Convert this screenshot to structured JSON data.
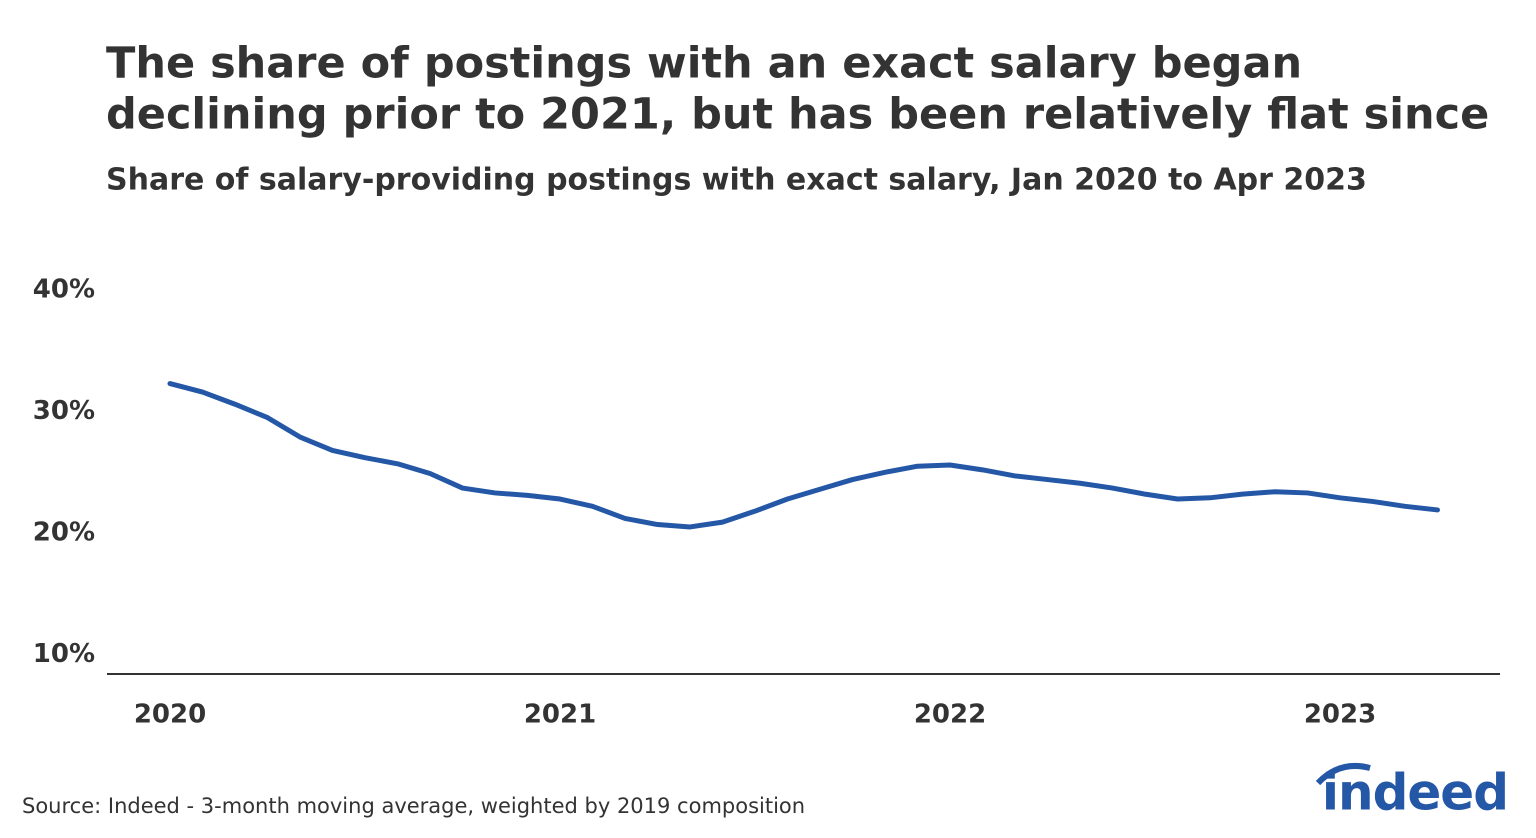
{
  "chart_data": {
    "type": "line",
    "title": "The share of postings with an exact salary began declining prior to 2021, but has been relatively flat since",
    "subtitle": "Share of salary-providing postings with exact salary, Jan 2020 to Apr 2023",
    "source": "Source: Indeed - 3-month moving average, weighted by 2019 composition",
    "logo": "indeed",
    "categories": [
      "2020",
      null,
      null,
      null,
      null,
      null,
      null,
      null,
      null,
      null,
      null,
      null,
      "2021",
      null,
      null,
      null,
      null,
      null,
      null,
      null,
      null,
      null,
      null,
      null,
      "2022",
      null,
      null,
      null,
      null,
      null,
      null,
      null,
      null,
      null,
      null,
      null,
      "2023",
      null,
      null,
      null
    ],
    "series": [
      {
        "color": "#2557a7",
        "values": [
          32.3,
          31.6,
          30.6,
          29.5,
          27.9,
          26.8,
          26.2,
          25.7,
          24.9,
          23.7,
          23.3,
          23.1,
          22.8,
          22.2,
          21.2,
          20.7,
          20.5,
          20.9,
          21.8,
          22.8,
          23.6,
          24.4,
          25.0,
          25.5,
          25.6,
          25.2,
          24.7,
          24.4,
          24.1,
          23.7,
          23.2,
          22.8,
          22.9,
          23.2,
          23.4,
          23.3,
          22.9,
          22.6,
          22.2,
          21.9
        ]
      }
    ],
    "ylim": [
      8.4,
      40
    ],
    "yticks": [
      {
        "value": 10,
        "label": "10%"
      },
      {
        "value": 20,
        "label": "20%"
      },
      {
        "value": 30,
        "label": "30%"
      },
      {
        "value": 40,
        "label": "40%"
      }
    ],
    "grid": false
  }
}
